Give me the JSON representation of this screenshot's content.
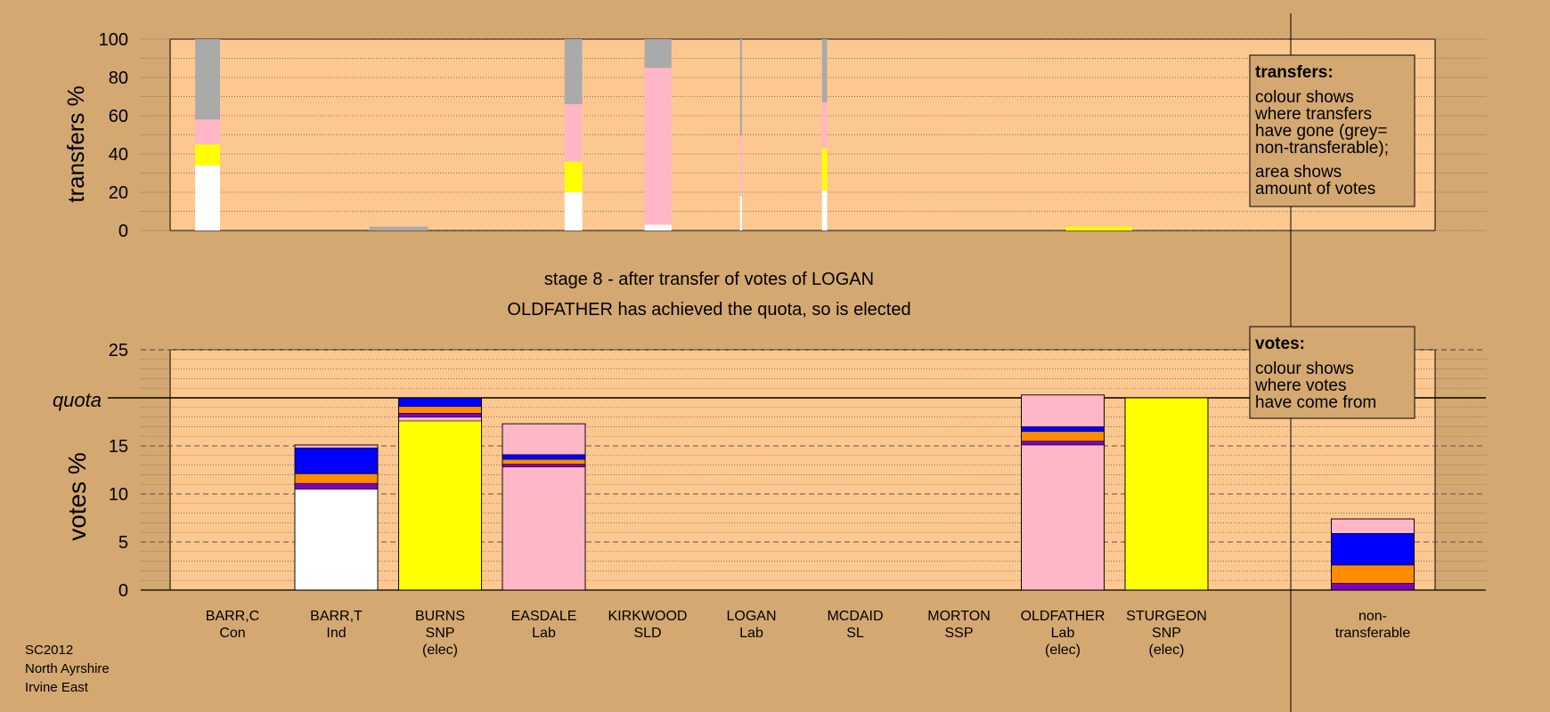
{
  "colors": {
    "background": "#d4a871",
    "plot_fill": "#fdc890",
    "grey": "#aaaaaa",
    "pink": "#ffb6c6",
    "yellow": "#ffff00",
    "white": "#ffffff",
    "blue": "#0000ff",
    "orange": "#ff8c00",
    "purple": "#8000c0",
    "navy": "#000080"
  },
  "title": {
    "line1": "stage 8 - after transfer of votes of LOGAN",
    "line2": "OLDFATHER has achieved the quota, so is elected"
  },
  "footer": [
    "SC2012",
    "North Ayrshire",
    "Irvine East"
  ],
  "legend_transfers": {
    "heading": "transfers:",
    "lines1": [
      "colour shows",
      "where transfers",
      "have gone (grey=",
      "non-transferable);"
    ],
    "lines2": [
      "area shows",
      "amount of votes"
    ]
  },
  "legend_votes": {
    "heading": "votes:",
    "lines": [
      "colour shows",
      "where votes",
      "have come from"
    ]
  },
  "chart_data": [
    {
      "type": "bar",
      "name": "transfers",
      "ylabel": "transfers %",
      "ylim": [
        0,
        100
      ],
      "yticks": [
        0,
        20,
        40,
        60,
        80,
        100
      ],
      "columns": [
        {
          "start": 0.14,
          "end": 0.38,
          "segments": [
            {
              "color": "white",
              "value": 34
            },
            {
              "color": "yellow",
              "value": 11
            },
            {
              "color": "pink",
              "value": 13
            },
            {
              "color": "grey",
              "value": 42
            }
          ]
        },
        {
          "start": 1.82,
          "end": 2.38,
          "segments": [
            {
              "color": "grey",
              "value": 2
            }
          ]
        },
        {
          "start": 3.7,
          "end": 3.87,
          "segments": [
            {
              "color": "white",
              "value": 20
            },
            {
              "color": "yellow",
              "value": 16
            },
            {
              "color": "pink",
              "value": 30
            },
            {
              "color": "grey",
              "value": 34
            }
          ]
        },
        {
          "start": 4.47,
          "end": 4.73,
          "segments": [
            {
              "color": "white",
              "value": 3
            },
            {
              "color": "pink",
              "value": 82
            },
            {
              "color": "grey",
              "value": 15
            }
          ]
        },
        {
          "start": 5.39,
          "end": 5.41,
          "segments": [
            {
              "color": "white",
              "value": 18
            },
            {
              "color": "pink",
              "value": 32
            },
            {
              "color": "grey",
              "value": 50
            }
          ]
        },
        {
          "start": 6.18,
          "end": 6.23,
          "segments": [
            {
              "color": "white",
              "value": 21
            },
            {
              "color": "yellow",
              "value": 22
            },
            {
              "color": "pink",
              "value": 24
            },
            {
              "color": "grey",
              "value": 33
            }
          ]
        },
        {
          "start": 8.53,
          "end": 9.17,
          "segments": [
            {
              "color": "yellow",
              "value": 2
            }
          ]
        }
      ]
    },
    {
      "type": "bar",
      "name": "votes",
      "ylabel": "votes %",
      "ylim": [
        0,
        25
      ],
      "yticks": [
        0,
        5,
        10,
        15,
        20,
        25
      ],
      "quota": 20,
      "quota_label": "quota",
      "candidates": [
        {
          "name": "BARR,C",
          "party": "Con",
          "status": "",
          "segments": []
        },
        {
          "name": "BARR,T",
          "party": "Ind",
          "status": "",
          "segments": [
            {
              "color": "white",
              "value": 10.5
            },
            {
              "color": "purple",
              "value": 0.6
            },
            {
              "color": "orange",
              "value": 1.0
            },
            {
              "color": "blue",
              "value": 2.7
            },
            {
              "color": "pink",
              "value": 0.3
            }
          ]
        },
        {
          "name": "BURNS",
          "party": "SNP",
          "status": "(elec)",
          "segments": [
            {
              "color": "yellow",
              "value": 17.6
            },
            {
              "color": "pink",
              "value": 0.4
            },
            {
              "color": "purple",
              "value": 0.4
            },
            {
              "color": "orange",
              "value": 0.7
            },
            {
              "color": "blue",
              "value": 0.9
            }
          ]
        },
        {
          "name": "EASDALE",
          "party": "Lab",
          "status": "",
          "segments": [
            {
              "color": "pink",
              "value": 12.8
            },
            {
              "color": "purple",
              "value": 0.3
            },
            {
              "color": "orange",
              "value": 0.5
            },
            {
              "color": "blue",
              "value": 0.5
            },
            {
              "color": "pink",
              "value": 3.2
            }
          ]
        },
        {
          "name": "KIRKWOOD",
          "party": "SLD",
          "status": "",
          "segments": []
        },
        {
          "name": "LOGAN",
          "party": "Lab",
          "status": "",
          "segments": []
        },
        {
          "name": "MCDAID",
          "party": "SL",
          "status": "",
          "segments": []
        },
        {
          "name": "MORTON",
          "party": "SSP",
          "status": "",
          "segments": []
        },
        {
          "name": "OLDFATHER",
          "party": "Lab",
          "status": "(elec)",
          "segments": [
            {
              "color": "pink",
              "value": 15.1
            },
            {
              "color": "purple",
              "value": 0.4
            },
            {
              "color": "orange",
              "value": 1.0
            },
            {
              "color": "blue",
              "value": 0.5
            },
            {
              "color": "pink",
              "value": 3.3
            }
          ]
        },
        {
          "name": "STURGEON",
          "party": "SNP",
          "status": "(elec)",
          "segments": [
            {
              "color": "yellow",
              "value": 20.0
            }
          ]
        },
        {
          "name": "non-",
          "party": "transferable",
          "status": "",
          "segments": [
            {
              "color": "purple",
              "value": 0.7
            },
            {
              "color": "orange",
              "value": 1.9
            },
            {
              "color": "blue",
              "value": 3.3
            },
            {
              "color": "pink",
              "value": 1.5
            }
          ],
          "separated": true
        }
      ]
    }
  ]
}
